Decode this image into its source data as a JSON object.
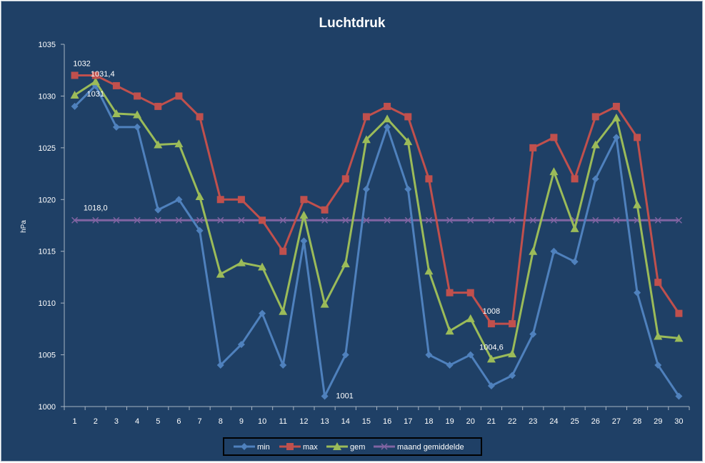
{
  "chart_data": {
    "type": "line",
    "title": "Luchtdruk",
    "ylabel": "hPa",
    "ylim": [
      1000,
      1035
    ],
    "yticks": [
      1000,
      1005,
      1010,
      1015,
      1020,
      1025,
      1030,
      1035
    ],
    "x": [
      "1",
      "2",
      "3",
      "4",
      "5",
      "6",
      "7",
      "8",
      "9",
      "10",
      "11",
      "12",
      "13",
      "14",
      "15",
      "16",
      "17",
      "18",
      "19",
      "20",
      "21",
      "22",
      "23",
      "24",
      "25",
      "26",
      "27",
      "28",
      "29",
      "30"
    ],
    "grid": false,
    "legend_position": "bottom",
    "series": [
      {
        "name": "min",
        "color": "#4f81bd",
        "marker": "diamond",
        "values": [
          1029,
          1031,
          1027,
          1027,
          1019,
          1020,
          1017,
          1004,
          1006,
          1009,
          1004,
          1016,
          1001,
          1005,
          1021,
          1027,
          1021,
          1005,
          1004,
          1005,
          1002,
          1003,
          1007,
          1015,
          1014,
          1022,
          1026,
          1011,
          1004,
          1001
        ]
      },
      {
        "name": "max",
        "color": "#c0504d",
        "marker": "square",
        "values": [
          1032,
          1032,
          1031,
          1030,
          1029,
          1030,
          1028,
          1020,
          1020,
          1018,
          1015,
          1020,
          1019,
          1022,
          1028,
          1029,
          1028,
          1022,
          1011,
          1011,
          1008,
          1008,
          1025,
          1026,
          1022,
          1028,
          1029,
          1026,
          1012,
          1009
        ]
      },
      {
        "name": "gem",
        "color": "#9bbb59",
        "marker": "triangle",
        "values": [
          1030.1,
          1031.4,
          1028.3,
          1028.2,
          1025.3,
          1025.4,
          1020.3,
          1012.8,
          1013.9,
          1013.5,
          1009.2,
          1018.5,
          1009.9,
          1013.8,
          1025.8,
          1027.8,
          1025.6,
          1013.1,
          1007.3,
          1008.5,
          1004.6,
          1005.1,
          1015,
          1022.7,
          1017.2,
          1025.3,
          1027.9,
          1019.5,
          1006.8,
          1006.6
        ]
      },
      {
        "name": "maand gemiddelde",
        "color": "#8064a2",
        "marker": "x",
        "values": [
          1018,
          1018,
          1018,
          1018,
          1018,
          1018,
          1018,
          1018,
          1018,
          1018,
          1018,
          1018,
          1018,
          1018,
          1018,
          1018,
          1018,
          1018,
          1018,
          1018,
          1018,
          1018,
          1018,
          1018,
          1018,
          1018,
          1018,
          1018,
          1018,
          1018
        ]
      }
    ],
    "annotations": [
      {
        "text": "1032",
        "series": "max",
        "index": 0
      },
      {
        "text": "1031,4",
        "series": "gem",
        "index": 1
      },
      {
        "text": "1031",
        "series": "min",
        "index": 1
      },
      {
        "text": "1018,0",
        "series": "maand gemiddelde",
        "index": 1
      },
      {
        "text": "1001",
        "series": "min",
        "index": 12
      },
      {
        "text": "1008",
        "series": "max",
        "index": 20
      },
      {
        "text": "1004,6",
        "series": "gem",
        "index": 20
      }
    ]
  }
}
